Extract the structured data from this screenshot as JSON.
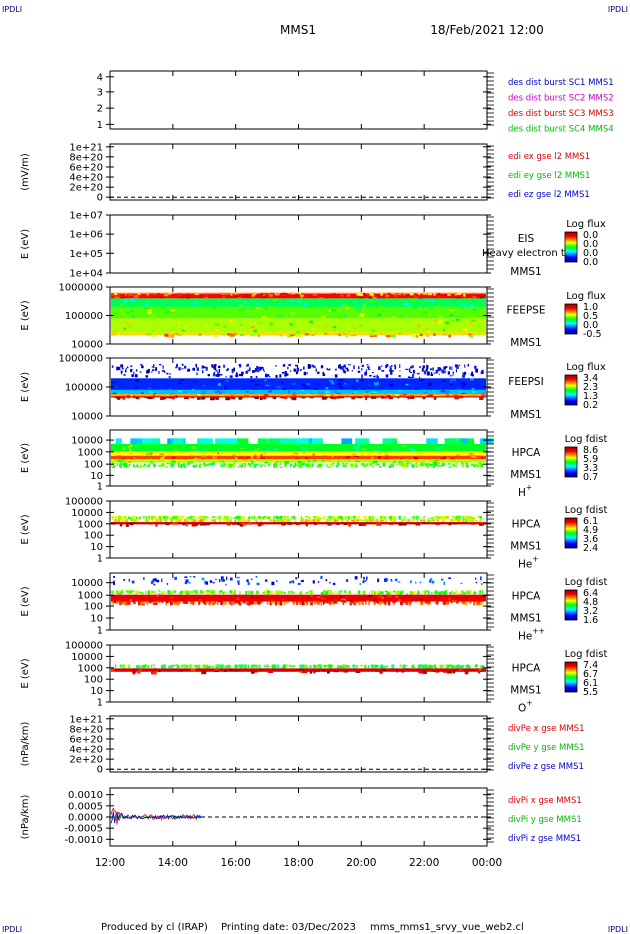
{
  "corners": {
    "top_left": "IPDLI",
    "top_right": "IPDLI",
    "bottom_left": "IPDLI",
    "bottom_right": "IPDLI"
  },
  "header": {
    "mission": "MMS1",
    "datetime": "18/Feb/2021 12:00"
  },
  "footer": {
    "produced_by": "Produced by cl (IRAP)",
    "printing_date": "Printing date: 03/Dec/2023",
    "filename": "mms_mms1_srvy_vue_web2.cl"
  },
  "chart_data": {
    "type": "line",
    "x_ticks": [
      "12:00",
      "14:00",
      "16:00",
      "18:00",
      "20:00",
      "22:00",
      "00:00"
    ],
    "x_range_hours": [
      12,
      24
    ],
    "panels": [
      {
        "id": "des-dist",
        "kind": "line",
        "ylabel": "",
        "yticks": [
          "1",
          "2",
          "3",
          "4"
        ],
        "legend": [
          {
            "text": "des dist burst SC1 MMS1",
            "color": "#0000cc"
          },
          {
            "text": "des dist burst SC2 MMS2",
            "color": "#cc00cc"
          },
          {
            "text": "des dist burst SC3 MMS3",
            "color": "#dd0000"
          },
          {
            "text": "des dist burst SC4 MMS4",
            "color": "#00bb00"
          }
        ]
      },
      {
        "id": "edi",
        "kind": "line",
        "ylabel": "(mV/m)",
        "yticks": [
          "0",
          "2e+20",
          "4e+20",
          "6e+20",
          "8e+20",
          "1e+21"
        ],
        "dashed_zero": true,
        "legend": [
          {
            "text": "edi ex gse l2 MMS1",
            "color": "#dd0000"
          },
          {
            "text": "edi ey gse l2 MMS1",
            "color": "#00bb00"
          },
          {
            "text": "edi ez gse l2 MMS1",
            "color": "#0000cc"
          }
        ]
      },
      {
        "id": "eis",
        "kind": "spectrogram",
        "ylabel": "E (eV)",
        "yticks": [
          "1e+04",
          "1e+05",
          "1e+06",
          "1e+07"
        ],
        "instrument": [
          "EIS",
          "MMS1"
        ],
        "overlay_text": "Heavy electron to",
        "colorbar_title": "Log flux",
        "colorbar_ticks": [
          "0.0",
          "0.0",
          "0.0",
          "0.0"
        ]
      },
      {
        "id": "feepse",
        "kind": "spectrogram",
        "ylabel": "E (eV)",
        "yticks": [
          "10000",
          "100000",
          "1000000"
        ],
        "instrument": [
          "FEEPSE",
          "MMS1"
        ],
        "colorbar_title": "Log flux",
        "colorbar_ticks": [
          "1.0",
          "0.5",
          "0.0",
          "-0.5"
        ]
      },
      {
        "id": "feepsi",
        "kind": "spectrogram",
        "ylabel": "E (eV)",
        "yticks": [
          "10000",
          "100000",
          "1000000"
        ],
        "instrument": [
          "FEEPSI",
          "MMS1"
        ],
        "colorbar_title": "Log flux",
        "colorbar_ticks": [
          "3.4",
          "2.3",
          "1.3",
          "0.2"
        ]
      },
      {
        "id": "hpca-h",
        "kind": "spectrogram",
        "ylabel": "E (eV)",
        "yticks": [
          "1",
          "10",
          "100",
          "1000",
          "10000"
        ],
        "instrument": [
          "HPCA",
          "MMS1"
        ],
        "species": "H",
        "species_sup": "+",
        "colorbar_title": "Log fdist",
        "colorbar_ticks": [
          "8.6",
          "5.9",
          "3.3",
          "0.7"
        ]
      },
      {
        "id": "hpca-he",
        "kind": "spectrogram",
        "ylabel": "E (eV)",
        "yticks": [
          "1",
          "10",
          "100",
          "1000",
          "10000",
          "100000"
        ],
        "instrument": [
          "HPCA",
          "MMS1"
        ],
        "species": "He",
        "species_sup": "+",
        "colorbar_title": "Log fdist",
        "colorbar_ticks": [
          "6.1",
          "4.9",
          "3.6",
          "2.4"
        ]
      },
      {
        "id": "hpca-hepp",
        "kind": "spectrogram",
        "ylabel": "E (eV)",
        "yticks": [
          "1",
          "10",
          "100",
          "1000",
          "10000"
        ],
        "instrument": [
          "HPCA",
          "MMS1"
        ],
        "species": "He",
        "species_sup": "++",
        "colorbar_title": "Log fdist",
        "colorbar_ticks": [
          "6.4",
          "4.8",
          "3.2",
          "1.6"
        ]
      },
      {
        "id": "hpca-o",
        "kind": "spectrogram",
        "ylabel": "E (eV)",
        "yticks": [
          "1",
          "10",
          "100",
          "1000",
          "10000",
          "100000"
        ],
        "instrument": [
          "HPCA",
          "MMS1"
        ],
        "species": "O",
        "species_sup": "+",
        "colorbar_title": "Log fdist",
        "colorbar_ticks": [
          "7.4",
          "6.7",
          "6.1",
          "5.5"
        ]
      },
      {
        "id": "divpe",
        "kind": "line",
        "ylabel": "(nPa/km)",
        "yticks": [
          "0",
          "2e+20",
          "4e+20",
          "6e+20",
          "8e+20",
          "1e+21"
        ],
        "dashed_zero": true,
        "legend": [
          {
            "text": "divPe x gse MMS1",
            "color": "#dd0000"
          },
          {
            "text": "divPe y gse MMS1",
            "color": "#00bb00"
          },
          {
            "text": "divPe z gse MMS1",
            "color": "#0000cc"
          }
        ]
      },
      {
        "id": "divpi",
        "kind": "line",
        "ylabel": "(nPa/km)",
        "yticks": [
          "-0.0010",
          "-0.0005",
          "0.0000",
          "0.0005",
          "0.0010"
        ],
        "dashed_zero": true,
        "ylim": [
          -0.0013,
          0.0013
        ],
        "data_end_hour": 14.9,
        "legend": [
          {
            "text": "divPi x gse MMS1",
            "color": "#dd0000"
          },
          {
            "text": "divPi y gse MMS1",
            "color": "#00bb00"
          },
          {
            "text": "divPi z gse MMS1",
            "color": "#0000cc"
          }
        ]
      }
    ]
  }
}
